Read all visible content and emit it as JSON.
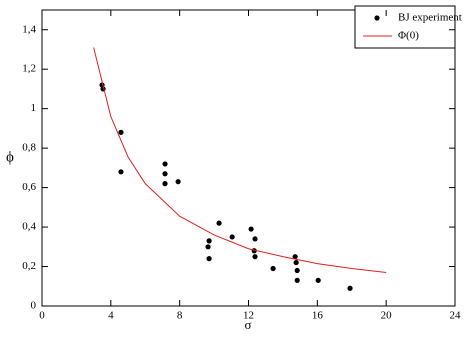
{
  "chart_data": {
    "type": "scatter",
    "xlabel": "σ",
    "ylabel": "ϕ",
    "xlim": [
      0,
      24
    ],
    "xticks": [
      0,
      4,
      8,
      12,
      16,
      20,
      24
    ],
    "ylim": [
      0,
      1.5
    ],
    "yticks": [
      0,
      {
        "value": 0.2,
        "label": "0,2"
      },
      {
        "value": 0.4,
        "label": "0,4"
      },
      {
        "value": 0.6,
        "label": "0,6"
      },
      {
        "value": 0.8,
        "label": "0,8"
      },
      1,
      {
        "value": 1.2,
        "label": "1,2"
      },
      {
        "value": 1.4,
        "label": "1,4"
      }
    ],
    "legend": "upper right",
    "series": [
      {
        "name": "BJ experiment",
        "type": "scatter",
        "color": "#000000",
        "x": [
          3.49,
          3.55,
          4.59,
          4.59,
          7.15,
          7.15,
          7.15,
          7.91,
          10.29,
          9.71,
          9.65,
          9.71,
          11.05,
          12.15,
          12.38,
          12.33,
          12.38,
          13.43,
          14.71,
          14.77,
          14.83,
          14.83,
          16.05,
          17.9
        ],
        "values": [
          1.12,
          1.1,
          0.88,
          0.68,
          0.72,
          0.67,
          0.62,
          0.63,
          0.42,
          0.33,
          0.3,
          0.24,
          0.35,
          0.39,
          0.34,
          0.28,
          0.25,
          0.19,
          0.25,
          0.22,
          0.18,
          0.13,
          0.13,
          0.09
        ]
      },
      {
        "name": "Φ(0)",
        "type": "line",
        "color": "#e02020",
        "x": [
          3,
          4,
          5,
          6,
          8,
          10,
          12,
          14,
          16,
          18,
          20
        ],
        "values": [
          1.31,
          0.96,
          0.755,
          0.62,
          0.455,
          0.36,
          0.29,
          0.25,
          0.215,
          0.19,
          0.17
        ]
      }
    ]
  }
}
